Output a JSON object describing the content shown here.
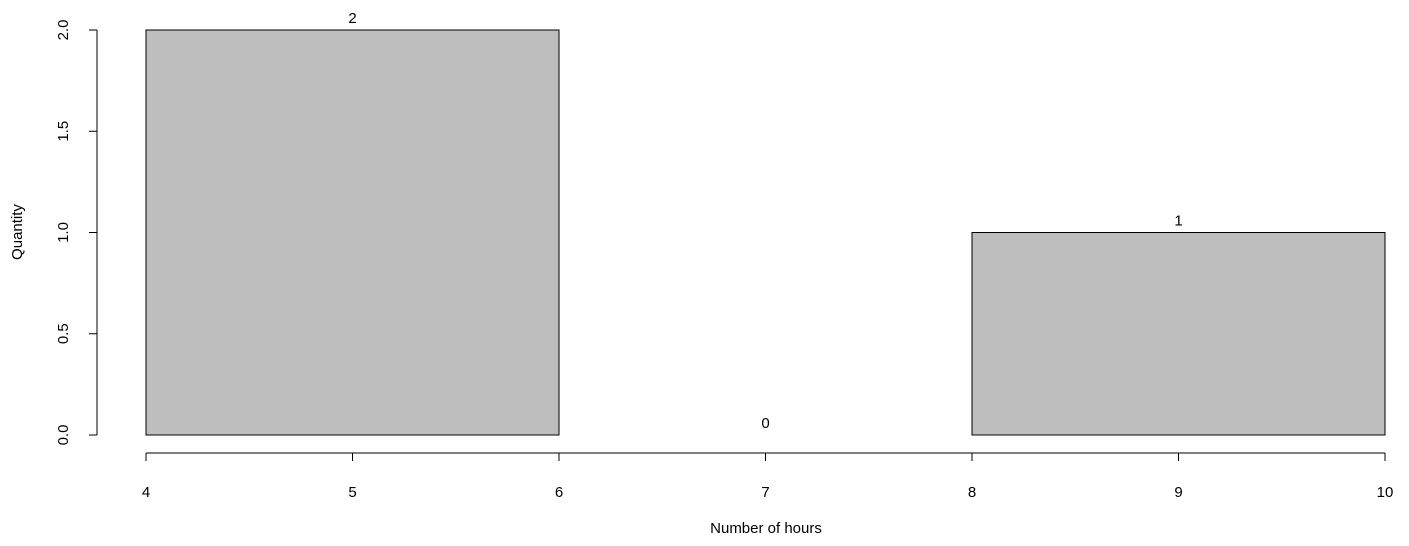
{
  "chart_data": {
    "type": "bar",
    "bins": [
      {
        "start": 4,
        "end": 6,
        "count": 2,
        "label": "2"
      },
      {
        "start": 6,
        "end": 8,
        "count": 0,
        "label": "0"
      },
      {
        "start": 8,
        "end": 10,
        "count": 1,
        "label": "1"
      }
    ],
    "x_ticks": [
      {
        "value": 4,
        "label": "4"
      },
      {
        "value": 5,
        "label": "5"
      },
      {
        "value": 6,
        "label": "6"
      },
      {
        "value": 7,
        "label": "7"
      },
      {
        "value": 8,
        "label": "8"
      },
      {
        "value": 9,
        "label": "9"
      },
      {
        "value": 10,
        "label": "10"
      }
    ],
    "y_ticks": [
      {
        "value": 0,
        "label": "0.0"
      },
      {
        "value": 0.5,
        "label": "0.5"
      },
      {
        "value": 1,
        "label": "1.0"
      },
      {
        "value": 1.5,
        "label": "1.5"
      },
      {
        "value": 2,
        "label": "2.0"
      }
    ],
    "xlabel": "Number of hours",
    "ylabel": "Quantity",
    "xlim": [
      4,
      10
    ],
    "ylim": [
      0,
      2
    ],
    "bar_color": "#bebebe",
    "edge_color": "#000000",
    "grid": false
  }
}
